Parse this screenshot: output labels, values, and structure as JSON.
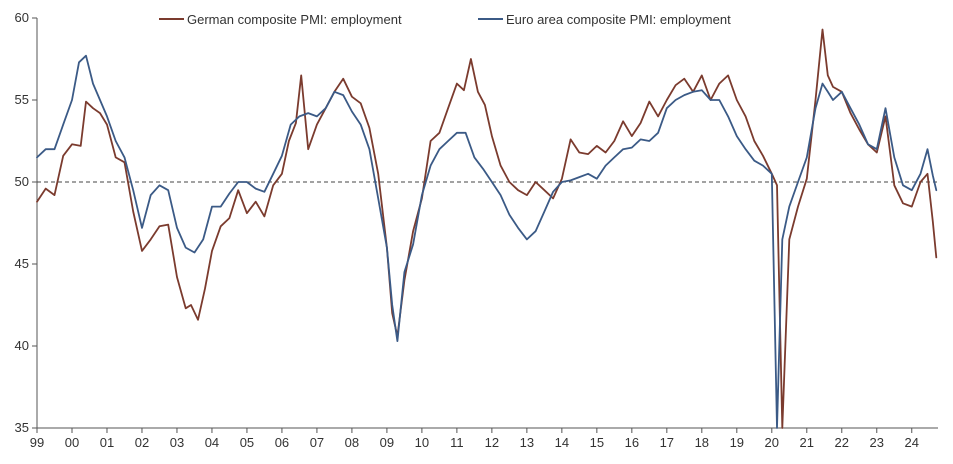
{
  "chart_data": {
    "type": "line",
    "title": "",
    "xlabel": "",
    "ylabel": "",
    "ylim": [
      35,
      60
    ],
    "yticks": [
      35,
      40,
      45,
      50,
      55,
      60
    ],
    "xlim": [
      1999.0,
      2024.75
    ],
    "xtick_positions": [
      1999,
      2000,
      2001,
      2002,
      2003,
      2004,
      2005,
      2006,
      2007,
      2008,
      2009,
      2010,
      2011,
      2012,
      2013,
      2014,
      2015,
      2016,
      2017,
      2018,
      2019,
      2020,
      2021,
      2022,
      2023,
      2024
    ],
    "xtick_labels": [
      "99",
      "00",
      "01",
      "02",
      "03",
      "04",
      "05",
      "06",
      "07",
      "08",
      "09",
      "10",
      "11",
      "12",
      "13",
      "14",
      "15",
      "16",
      "17",
      "18",
      "19",
      "20",
      "21",
      "22",
      "23",
      "24"
    ],
    "reference_line": 50,
    "legend_position": "top-center",
    "series": [
      {
        "name": "German composite PMI: employment",
        "color": "#7b3b2e",
        "x": [
          1999.0,
          1999.25,
          1999.5,
          1999.75,
          2000.0,
          2000.25,
          2000.4,
          2000.6,
          2000.8,
          2001.0,
          2001.25,
          2001.5,
          2001.75,
          2002.0,
          2002.25,
          2002.5,
          2002.75,
          2003.0,
          2003.25,
          2003.4,
          2003.6,
          2003.8,
          2004.0,
          2004.25,
          2004.5,
          2004.75,
          2005.0,
          2005.25,
          2005.5,
          2005.75,
          2006.0,
          2006.2,
          2006.4,
          2006.55,
          2006.75,
          2007.0,
          2007.25,
          2007.5,
          2007.75,
          2008.0,
          2008.25,
          2008.5,
          2008.75,
          2009.0,
          2009.15,
          2009.3,
          2009.5,
          2009.75,
          2010.0,
          2010.25,
          2010.5,
          2010.75,
          2011.0,
          2011.2,
          2011.4,
          2011.6,
          2011.8,
          2012.0,
          2012.25,
          2012.5,
          2012.75,
          2013.0,
          2013.25,
          2013.5,
          2013.75,
          2014.0,
          2014.25,
          2014.5,
          2014.75,
          2015.0,
          2015.25,
          2015.5,
          2015.75,
          2016.0,
          2016.25,
          2016.5,
          2016.75,
          2017.0,
          2017.25,
          2017.5,
          2017.75,
          2018.0,
          2018.25,
          2018.5,
          2018.75,
          2019.0,
          2019.25,
          2019.5,
          2019.75,
          2020.0,
          2020.15,
          2020.3,
          2020.5,
          2020.75,
          2021.0,
          2021.25,
          2021.45,
          2021.6,
          2021.75,
          2022.0,
          2022.25,
          2022.5,
          2022.75,
          2023.0,
          2023.25,
          2023.5,
          2023.75,
          2024.0,
          2024.25,
          2024.45,
          2024.6,
          2024.7
        ],
        "values": [
          48.8,
          49.6,
          49.2,
          51.6,
          52.3,
          52.2,
          54.9,
          54.5,
          54.2,
          53.5,
          51.5,
          51.2,
          48.2,
          45.8,
          46.5,
          47.3,
          47.4,
          44.2,
          42.3,
          42.5,
          41.6,
          43.5,
          45.8,
          47.3,
          47.8,
          49.5,
          48.1,
          48.8,
          47.9,
          49.8,
          50.5,
          52.5,
          53.6,
          56.5,
          52.0,
          53.5,
          54.5,
          55.5,
          56.3,
          55.2,
          54.8,
          53.3,
          50.5,
          46.0,
          42.0,
          40.6,
          44.0,
          47.0,
          49.0,
          52.5,
          53.0,
          54.5,
          56.0,
          55.6,
          57.5,
          55.5,
          54.7,
          52.8,
          51.0,
          50.0,
          49.5,
          49.2,
          50.0,
          49.5,
          49.0,
          50.2,
          52.6,
          51.8,
          51.7,
          52.2,
          51.8,
          52.5,
          53.7,
          52.8,
          53.6,
          54.9,
          54.0,
          55.0,
          55.9,
          56.3,
          55.5,
          56.5,
          55.0,
          56.0,
          56.5,
          55.0,
          54.0,
          52.5,
          51.6,
          50.5,
          49.8,
          35.0,
          46.5,
          48.5,
          50.2,
          55.0,
          59.3,
          56.5,
          55.8,
          55.5,
          54.2,
          53.2,
          52.3,
          51.8,
          54.0,
          49.8,
          48.7,
          48.5,
          50.0,
          50.5,
          47.6,
          45.4
        ]
      },
      {
        "name": "Euro area composite PMI: employment",
        "color": "#3b5a86",
        "x": [
          1999.0,
          1999.25,
          1999.5,
          1999.75,
          2000.0,
          2000.2,
          2000.4,
          2000.6,
          2000.8,
          2001.0,
          2001.25,
          2001.5,
          2001.75,
          2002.0,
          2002.25,
          2002.5,
          2002.75,
          2003.0,
          2003.25,
          2003.5,
          2003.75,
          2004.0,
          2004.25,
          2004.5,
          2004.75,
          2005.0,
          2005.25,
          2005.5,
          2005.75,
          2006.0,
          2006.25,
          2006.5,
          2006.75,
          2007.0,
          2007.25,
          2007.5,
          2007.75,
          2008.0,
          2008.25,
          2008.5,
          2008.75,
          2009.0,
          2009.15,
          2009.3,
          2009.5,
          2009.75,
          2010.0,
          2010.25,
          2010.5,
          2010.75,
          2011.0,
          2011.25,
          2011.5,
          2011.75,
          2012.0,
          2012.25,
          2012.5,
          2012.75,
          2013.0,
          2013.25,
          2013.5,
          2013.75,
          2014.0,
          2014.25,
          2014.5,
          2014.75,
          2015.0,
          2015.25,
          2015.5,
          2015.75,
          2016.0,
          2016.25,
          2016.5,
          2016.75,
          2017.0,
          2017.25,
          2017.5,
          2017.75,
          2018.0,
          2018.25,
          2018.5,
          2018.75,
          2019.0,
          2019.25,
          2019.5,
          2019.75,
          2020.0,
          2020.15,
          2020.3,
          2020.5,
          2020.75,
          2021.0,
          2021.25,
          2021.45,
          2021.6,
          2021.75,
          2022.0,
          2022.25,
          2022.5,
          2022.75,
          2023.0,
          2023.25,
          2023.5,
          2023.75,
          2024.0,
          2024.25,
          2024.45,
          2024.6,
          2024.7
        ],
        "values": [
          51.5,
          52.0,
          52.0,
          53.5,
          55.0,
          57.3,
          57.7,
          56.0,
          55.0,
          54.0,
          52.5,
          51.5,
          49.5,
          47.2,
          49.2,
          49.8,
          49.5,
          47.2,
          46.0,
          45.7,
          46.5,
          48.5,
          48.5,
          49.3,
          50.0,
          50.0,
          49.6,
          49.4,
          50.5,
          51.6,
          53.5,
          54.0,
          54.2,
          54.0,
          54.5,
          55.5,
          55.3,
          54.3,
          53.5,
          52.0,
          49.0,
          46.0,
          42.5,
          40.3,
          44.5,
          46.2,
          49.2,
          51.0,
          52.0,
          52.5,
          53.0,
          53.0,
          51.5,
          50.8,
          50.0,
          49.2,
          48.0,
          47.2,
          46.5,
          47.0,
          48.2,
          49.4,
          50.0,
          50.1,
          50.3,
          50.5,
          50.2,
          51.0,
          51.5,
          52.0,
          52.1,
          52.6,
          52.5,
          53.0,
          54.5,
          55.0,
          55.3,
          55.5,
          55.6,
          55.0,
          55.0,
          54.0,
          52.8,
          52.0,
          51.3,
          51.0,
          50.5,
          35.0,
          46.5,
          48.5,
          50.0,
          51.5,
          54.5,
          56.0,
          55.5,
          55.0,
          55.5,
          54.5,
          53.5,
          52.3,
          52.0,
          54.5,
          51.5,
          49.8,
          49.5,
          50.5,
          52.0,
          50.4,
          49.5
        ]
      }
    ]
  }
}
